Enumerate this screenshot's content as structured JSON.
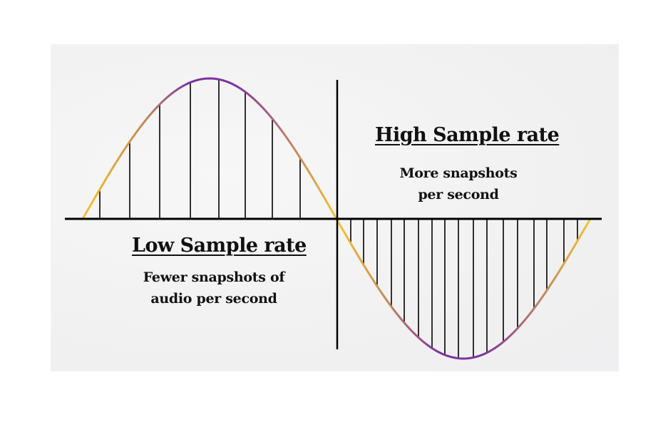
{
  "high": {
    "title": "High Sample rate",
    "line1": "More snapshots",
    "line2": "per second"
  },
  "low": {
    "title": "Low Sample rate",
    "line1": "Fewer snapshots of",
    "line2": "audio per second"
  },
  "colors": {
    "curve_start": "#f3c531",
    "curve_mid": "#b77e6e",
    "curve_peak": "#7d33a0",
    "axis": "#000000",
    "panel": "#f2f2f2"
  },
  "chart_data": {
    "type": "diagram",
    "description": "One period of a sine wave illustrating audio sampling",
    "half_positive": {
      "label": "Low Sample rate",
      "sample_count": 8
    },
    "half_negative": {
      "label": "High Sample rate",
      "sample_count": 17
    }
  }
}
